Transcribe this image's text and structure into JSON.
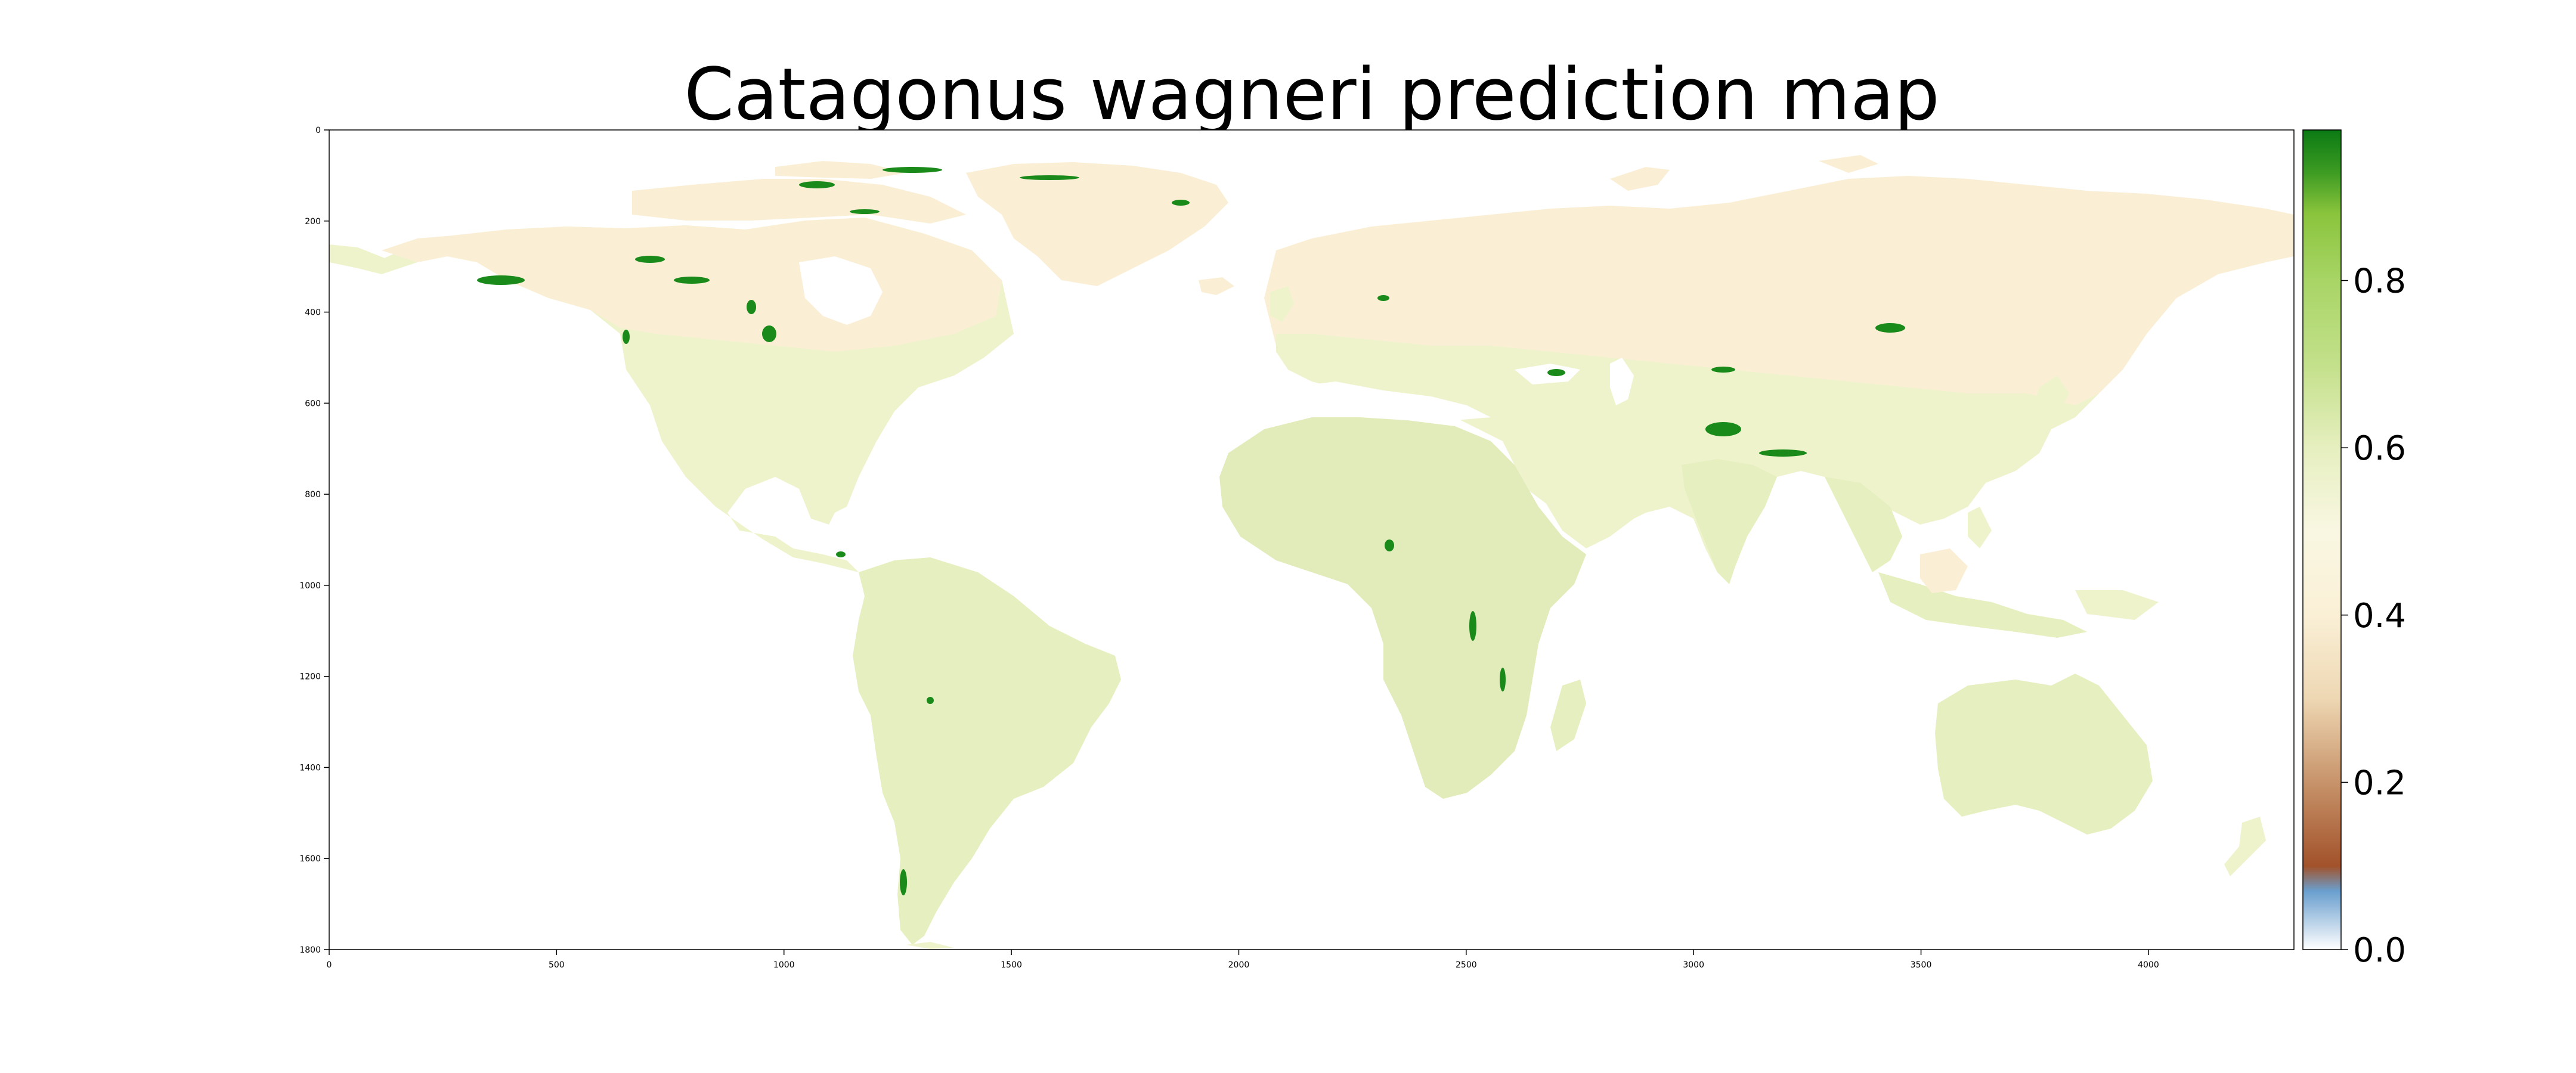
{
  "title": "Catagonus wagneri prediction map",
  "chart_data": {
    "type": "heatmap",
    "title": "Catagonus wagneri prediction map",
    "xlabel": "",
    "ylabel": "",
    "xlim": [
      0,
      4320
    ],
    "ylim": [
      1800,
      0
    ],
    "x_ticks": [
      0,
      500,
      1000,
      1500,
      2000,
      2500,
      3000,
      3500,
      4000
    ],
    "y_ticks": [
      0,
      200,
      400,
      600,
      800,
      1000,
      1200,
      1400,
      1600,
      1800
    ],
    "colorbar": {
      "range": [
        0.0,
        0.98
      ],
      "ticks": [
        "0.0",
        "0.2",
        "0.4",
        "0.6",
        "0.8"
      ],
      "tick_values": [
        0.0,
        0.2,
        0.4,
        0.6,
        0.8
      ],
      "colors": [
        {
          "v": 0.0,
          "c": "#ffffff"
        },
        {
          "v": 0.07,
          "c": "#6a9fce"
        },
        {
          "v": 0.1,
          "c": "#a2522a"
        },
        {
          "v": 0.2,
          "c": "#c7936a"
        },
        {
          "v": 0.3,
          "c": "#eed7b3"
        },
        {
          "v": 0.4,
          "c": "#faf0d6"
        },
        {
          "v": 0.5,
          "c": "#f9f7e2"
        },
        {
          "v": 0.6,
          "c": "#e6efbf"
        },
        {
          "v": 0.7,
          "c": "#c3e08a"
        },
        {
          "v": 0.8,
          "c": "#a8d566"
        },
        {
          "v": 0.88,
          "c": "#8ac43c"
        },
        {
          "v": 0.93,
          "c": "#3c9b22"
        },
        {
          "v": 0.98,
          "c": "#0b7a14"
        }
      ]
    },
    "colors": {
      "ocean": "#ffffff",
      "land_low": "#faefd5",
      "land_mid": "#eef3cc",
      "land_high": "#e1ecba",
      "hotspot": "#1a8a1a"
    }
  }
}
